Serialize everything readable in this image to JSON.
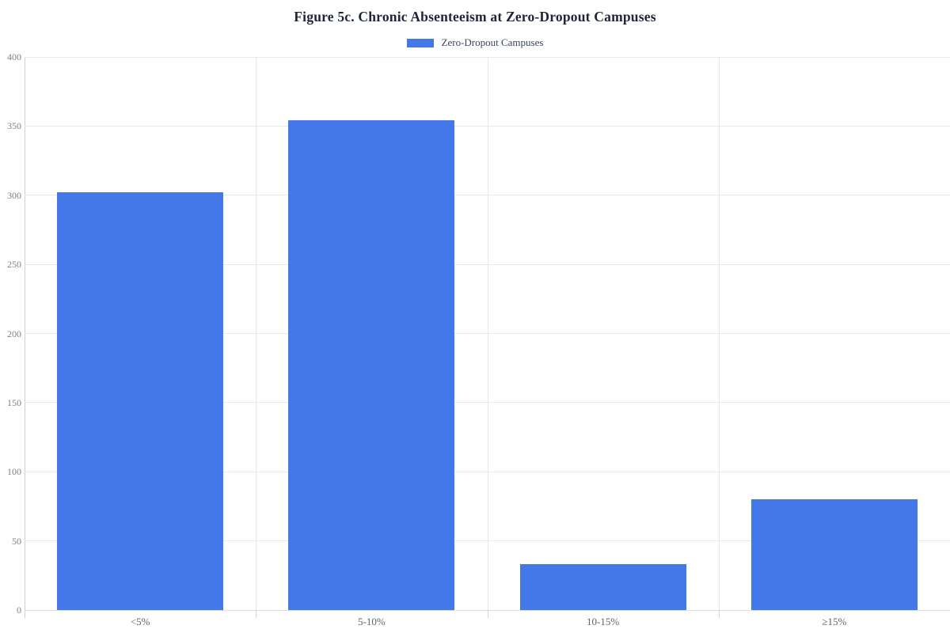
{
  "title": "Figure 5c. Chronic Absenteeism at Zero-Dropout Campuses",
  "legend": {
    "position": "top-center",
    "items": [
      {
        "label": "Zero-Dropout Campuses",
        "color": "#4477e8"
      }
    ]
  },
  "chart_data": {
    "type": "bar",
    "title": "Figure 5c. Chronic Absenteeism at Zero-Dropout Campuses",
    "categories": [
      "<5%",
      "5-10%",
      "10-15%",
      "≥15%"
    ],
    "series": [
      {
        "name": "Zero-Dropout Campuses",
        "values": [
          302,
          354,
          33,
          80
        ],
        "color": "#4477e8"
      }
    ],
    "xlabel": "",
    "ylabel": "",
    "ylim": [
      0,
      400
    ],
    "yticks": [
      0,
      50,
      100,
      150,
      200,
      250,
      300,
      350,
      400
    ],
    "grid": true,
    "legend_position": "top-center"
  },
  "colors": {
    "bar": "#4477e8",
    "title_text": "#1c2638",
    "legend_text": "#39465f",
    "y_tick_text": "#7c818b",
    "x_tick_text": "#5d6470",
    "gridline": "#e9e9e9",
    "axis_line": "#cfcfcf",
    "background": "#ffffff"
  }
}
